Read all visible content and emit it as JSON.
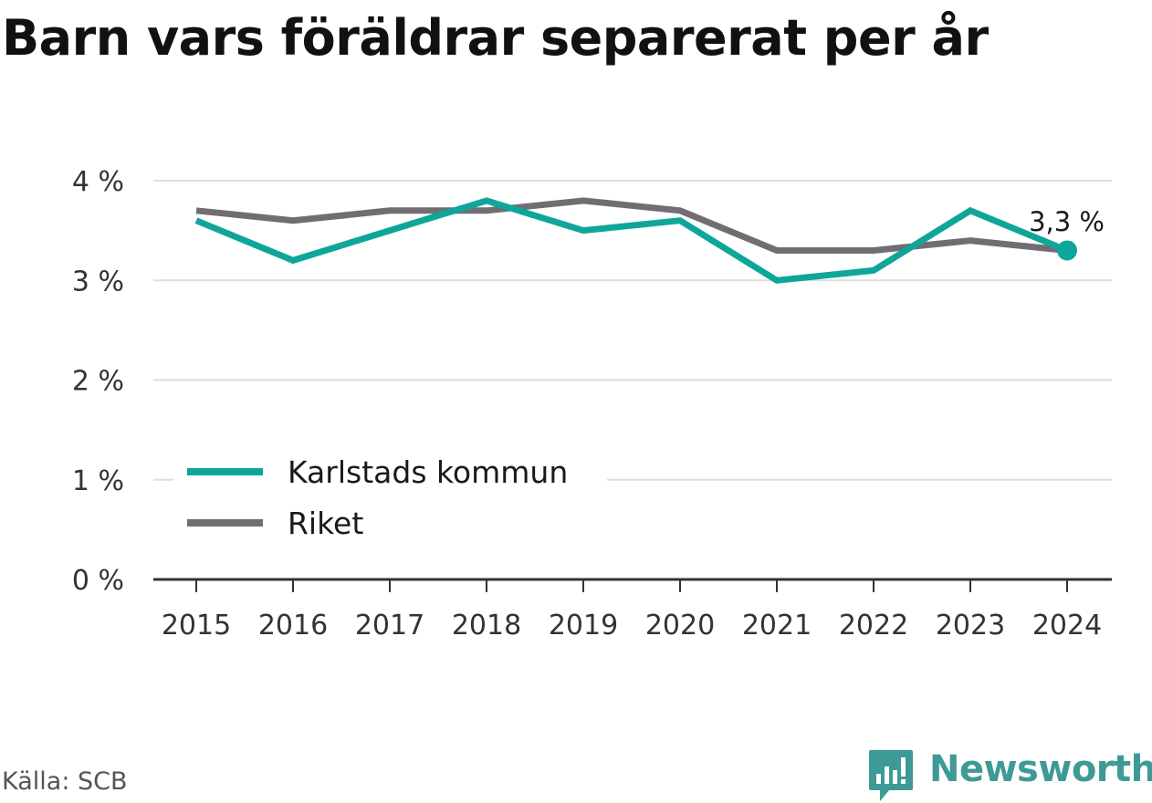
{
  "chart_data": {
    "type": "line",
    "title": "Barn vars föräldrar separerat per år",
    "x": [
      "2015",
      "2016",
      "2017",
      "2018",
      "2019",
      "2020",
      "2021",
      "2022",
      "2023",
      "2024"
    ],
    "series": [
      {
        "name": "Karlstads kommun",
        "color": "#0fa69a",
        "values": [
          3.6,
          3.2,
          3.5,
          3.8,
          3.5,
          3.6,
          3.0,
          3.1,
          3.7,
          3.3
        ]
      },
      {
        "name": "Riket",
        "color": "#706e72",
        "values": [
          3.7,
          3.6,
          3.7,
          3.7,
          3.8,
          3.7,
          3.3,
          3.3,
          3.4,
          3.3
        ]
      }
    ],
    "yticks": [
      0,
      1,
      2,
      3,
      4
    ],
    "ytick_labels": [
      "0 %",
      "1 %",
      "2 %",
      "3 %",
      "4 %"
    ],
    "ylim": [
      0,
      4
    ],
    "grid": true,
    "legend_position": "bottom-left",
    "end_label": "3,3 %"
  },
  "source": "Källa: SCB",
  "brand": "Newsworthy",
  "icon": "newsworthy-logo-icon"
}
